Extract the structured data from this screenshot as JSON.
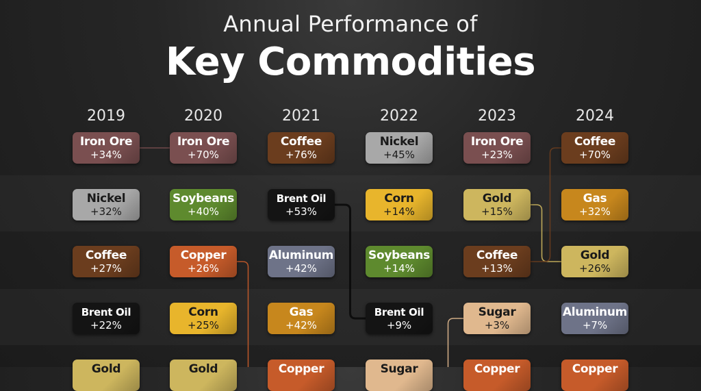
{
  "title": {
    "line1": "Annual Performance of",
    "line2": "Key Commodities"
  },
  "colors": {
    "Iron Ore": "#7a4f50",
    "Nickel": "#a8a8a8",
    "Coffee": "#6b3d1e",
    "Brent Oil": "#141414",
    "Soybeans": "#5e8a2e",
    "Copper": "#c65b2a",
    "Corn": "#e8b52c",
    "Aluminum": "#6e7388",
    "Gas": "#c7871d",
    "Gold": "#cdb65e",
    "Sugar": "#e0b88e"
  },
  "text_dark": [
    "Nickel",
    "Corn",
    "Gold",
    "Sugar"
  ],
  "chart_data": {
    "type": "table",
    "years": [
      "2019",
      "2020",
      "2021",
      "2022",
      "2023",
      "2024"
    ],
    "rankings": [
      [
        {
          "name": "Iron Ore",
          "change": "+34%"
        },
        {
          "name": "Nickel",
          "change": "+32%"
        },
        {
          "name": "Coffee",
          "change": "+27%"
        },
        {
          "name": "Brent Oil",
          "change": "+22%"
        },
        {
          "name": "Gold",
          "change": ""
        }
      ],
      [
        {
          "name": "Iron Ore",
          "change": "+70%"
        },
        {
          "name": "Soybeans",
          "change": "+40%"
        },
        {
          "name": "Copper",
          "change": "+26%"
        },
        {
          "name": "Corn",
          "change": "+25%"
        },
        {
          "name": "Gold",
          "change": ""
        }
      ],
      [
        {
          "name": "Coffee",
          "change": "+76%"
        },
        {
          "name": "Brent Oil",
          "change": "+53%"
        },
        {
          "name": "Aluminum",
          "change": "+42%"
        },
        {
          "name": "Gas",
          "change": "+42%"
        },
        {
          "name": "Copper",
          "change": ""
        }
      ],
      [
        {
          "name": "Nickel",
          "change": "+45%"
        },
        {
          "name": "Corn",
          "change": "+14%"
        },
        {
          "name": "Soybeans",
          "change": "+14%"
        },
        {
          "name": "Brent Oil",
          "change": "+9%"
        },
        {
          "name": "Sugar",
          "change": ""
        }
      ],
      [
        {
          "name": "Iron Ore",
          "change": "+23%"
        },
        {
          "name": "Gold",
          "change": "+15%"
        },
        {
          "name": "Coffee",
          "change": "+13%"
        },
        {
          "name": "Sugar",
          "change": "+3%"
        },
        {
          "name": "Copper",
          "change": ""
        }
      ],
      [
        {
          "name": "Coffee",
          "change": "+70%"
        },
        {
          "name": "Gas",
          "change": "+32%"
        },
        {
          "name": "Gold",
          "change": "+26%"
        },
        {
          "name": "Aluminum",
          "change": "+7%"
        },
        {
          "name": "Copper",
          "change": ""
        }
      ]
    ]
  }
}
